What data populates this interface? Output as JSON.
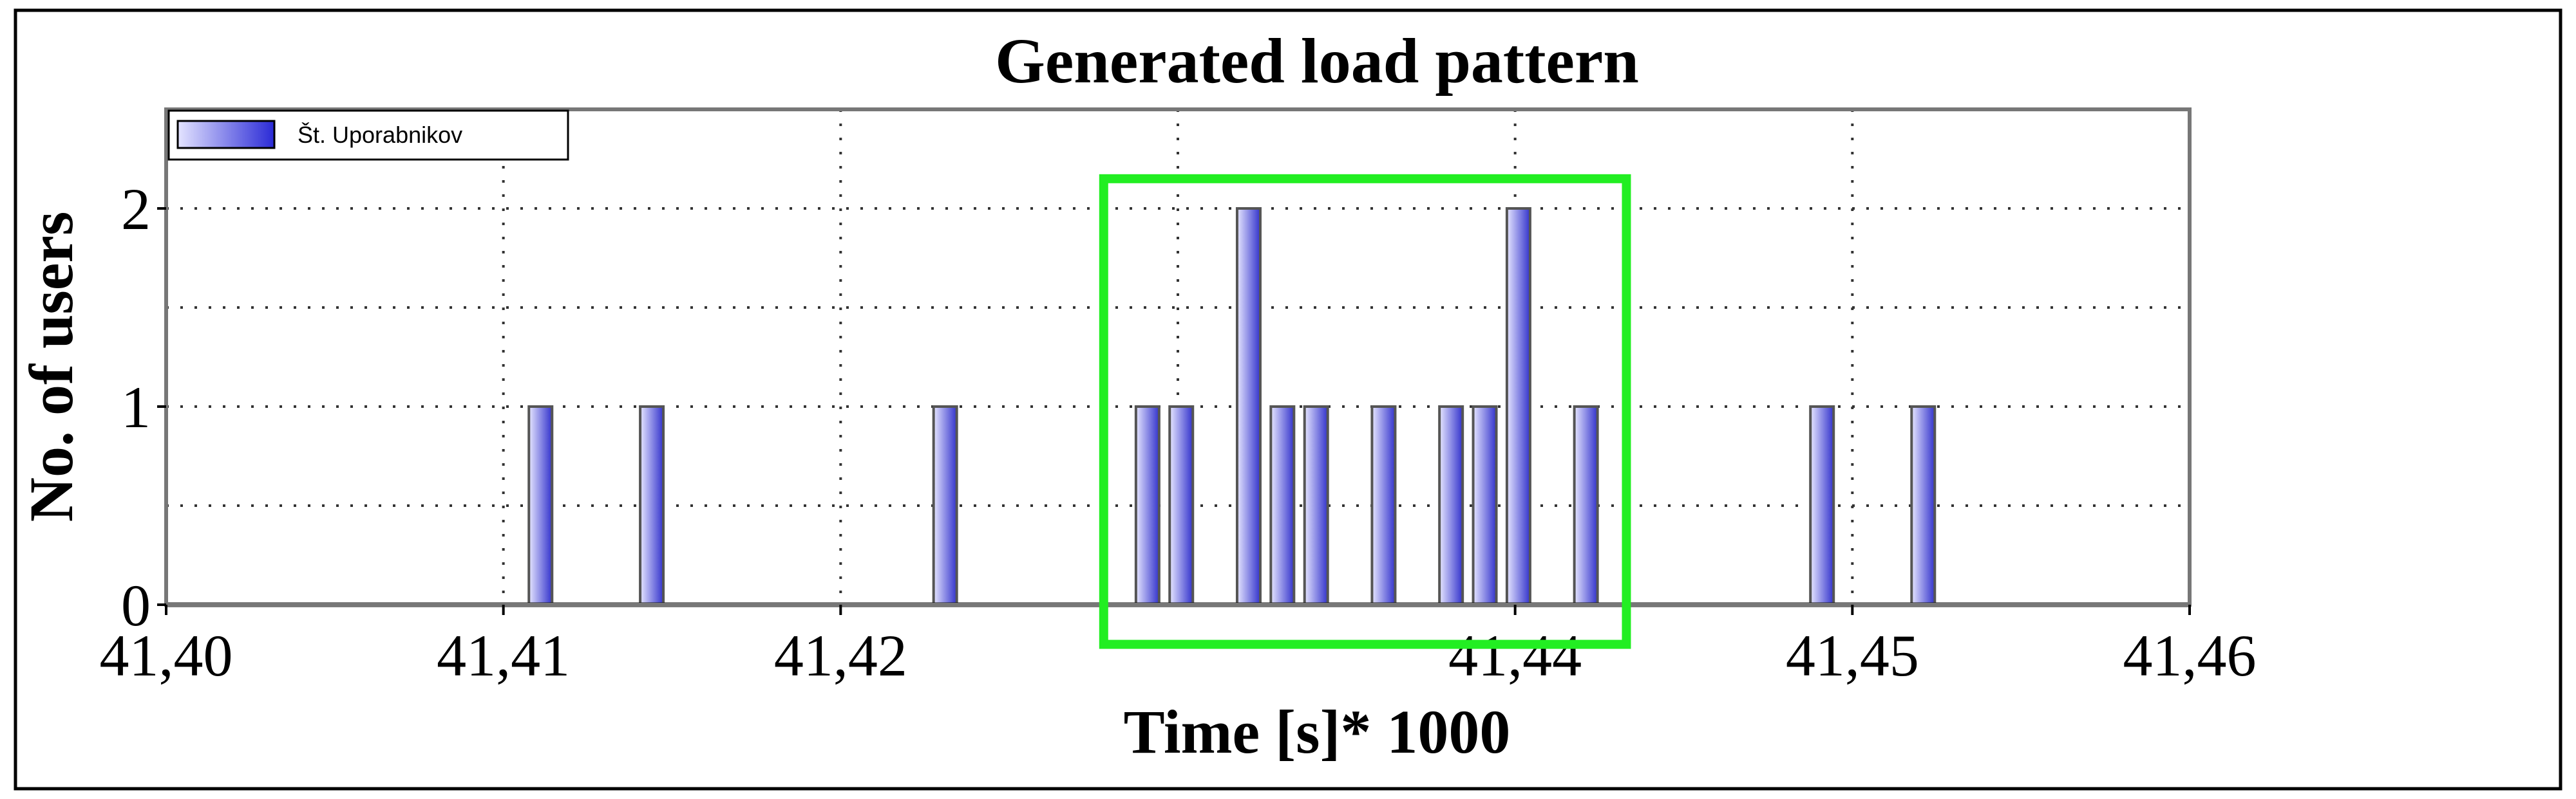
{
  "chart_data": {
    "type": "bar",
    "title": "Generated load pattern",
    "xlabel": "Time [s]* 1000",
    "ylabel": "No. of users",
    "xlim": [
      41.4,
      41.46
    ],
    "ylim": [
      0,
      2.5
    ],
    "x_ticks": [
      "41,40",
      "41,41",
      "41,42",
      "41,44",
      "41,45",
      "41,46"
    ],
    "x_tick_values": [
      41.4,
      41.41,
      41.42,
      41.44,
      41.45,
      41.46
    ],
    "y_ticks": [
      "0",
      "1",
      "2"
    ],
    "y_tick_values": [
      0,
      1,
      2
    ],
    "grid": true,
    "legend_position": "top-left",
    "series": [
      {
        "name": "Št. Uporabnikov",
        "color": "#3333cc",
        "x": [
          41.4111,
          41.4144,
          41.4231,
          41.4291,
          41.4301,
          41.4321,
          41.4331,
          41.4341,
          41.4361,
          41.4381,
          41.4391,
          41.4401,
          41.4421,
          41.4491,
          41.4521
        ],
        "values": [
          1,
          1,
          1,
          1,
          1,
          2,
          1,
          1,
          1,
          1,
          1,
          2,
          1,
          1,
          1
        ]
      }
    ],
    "highlight": {
      "color": "#22ee22",
      "x_range": [
        41.4278,
        41.4433
      ],
      "y_range": [
        -0.2,
        2.15
      ]
    }
  }
}
